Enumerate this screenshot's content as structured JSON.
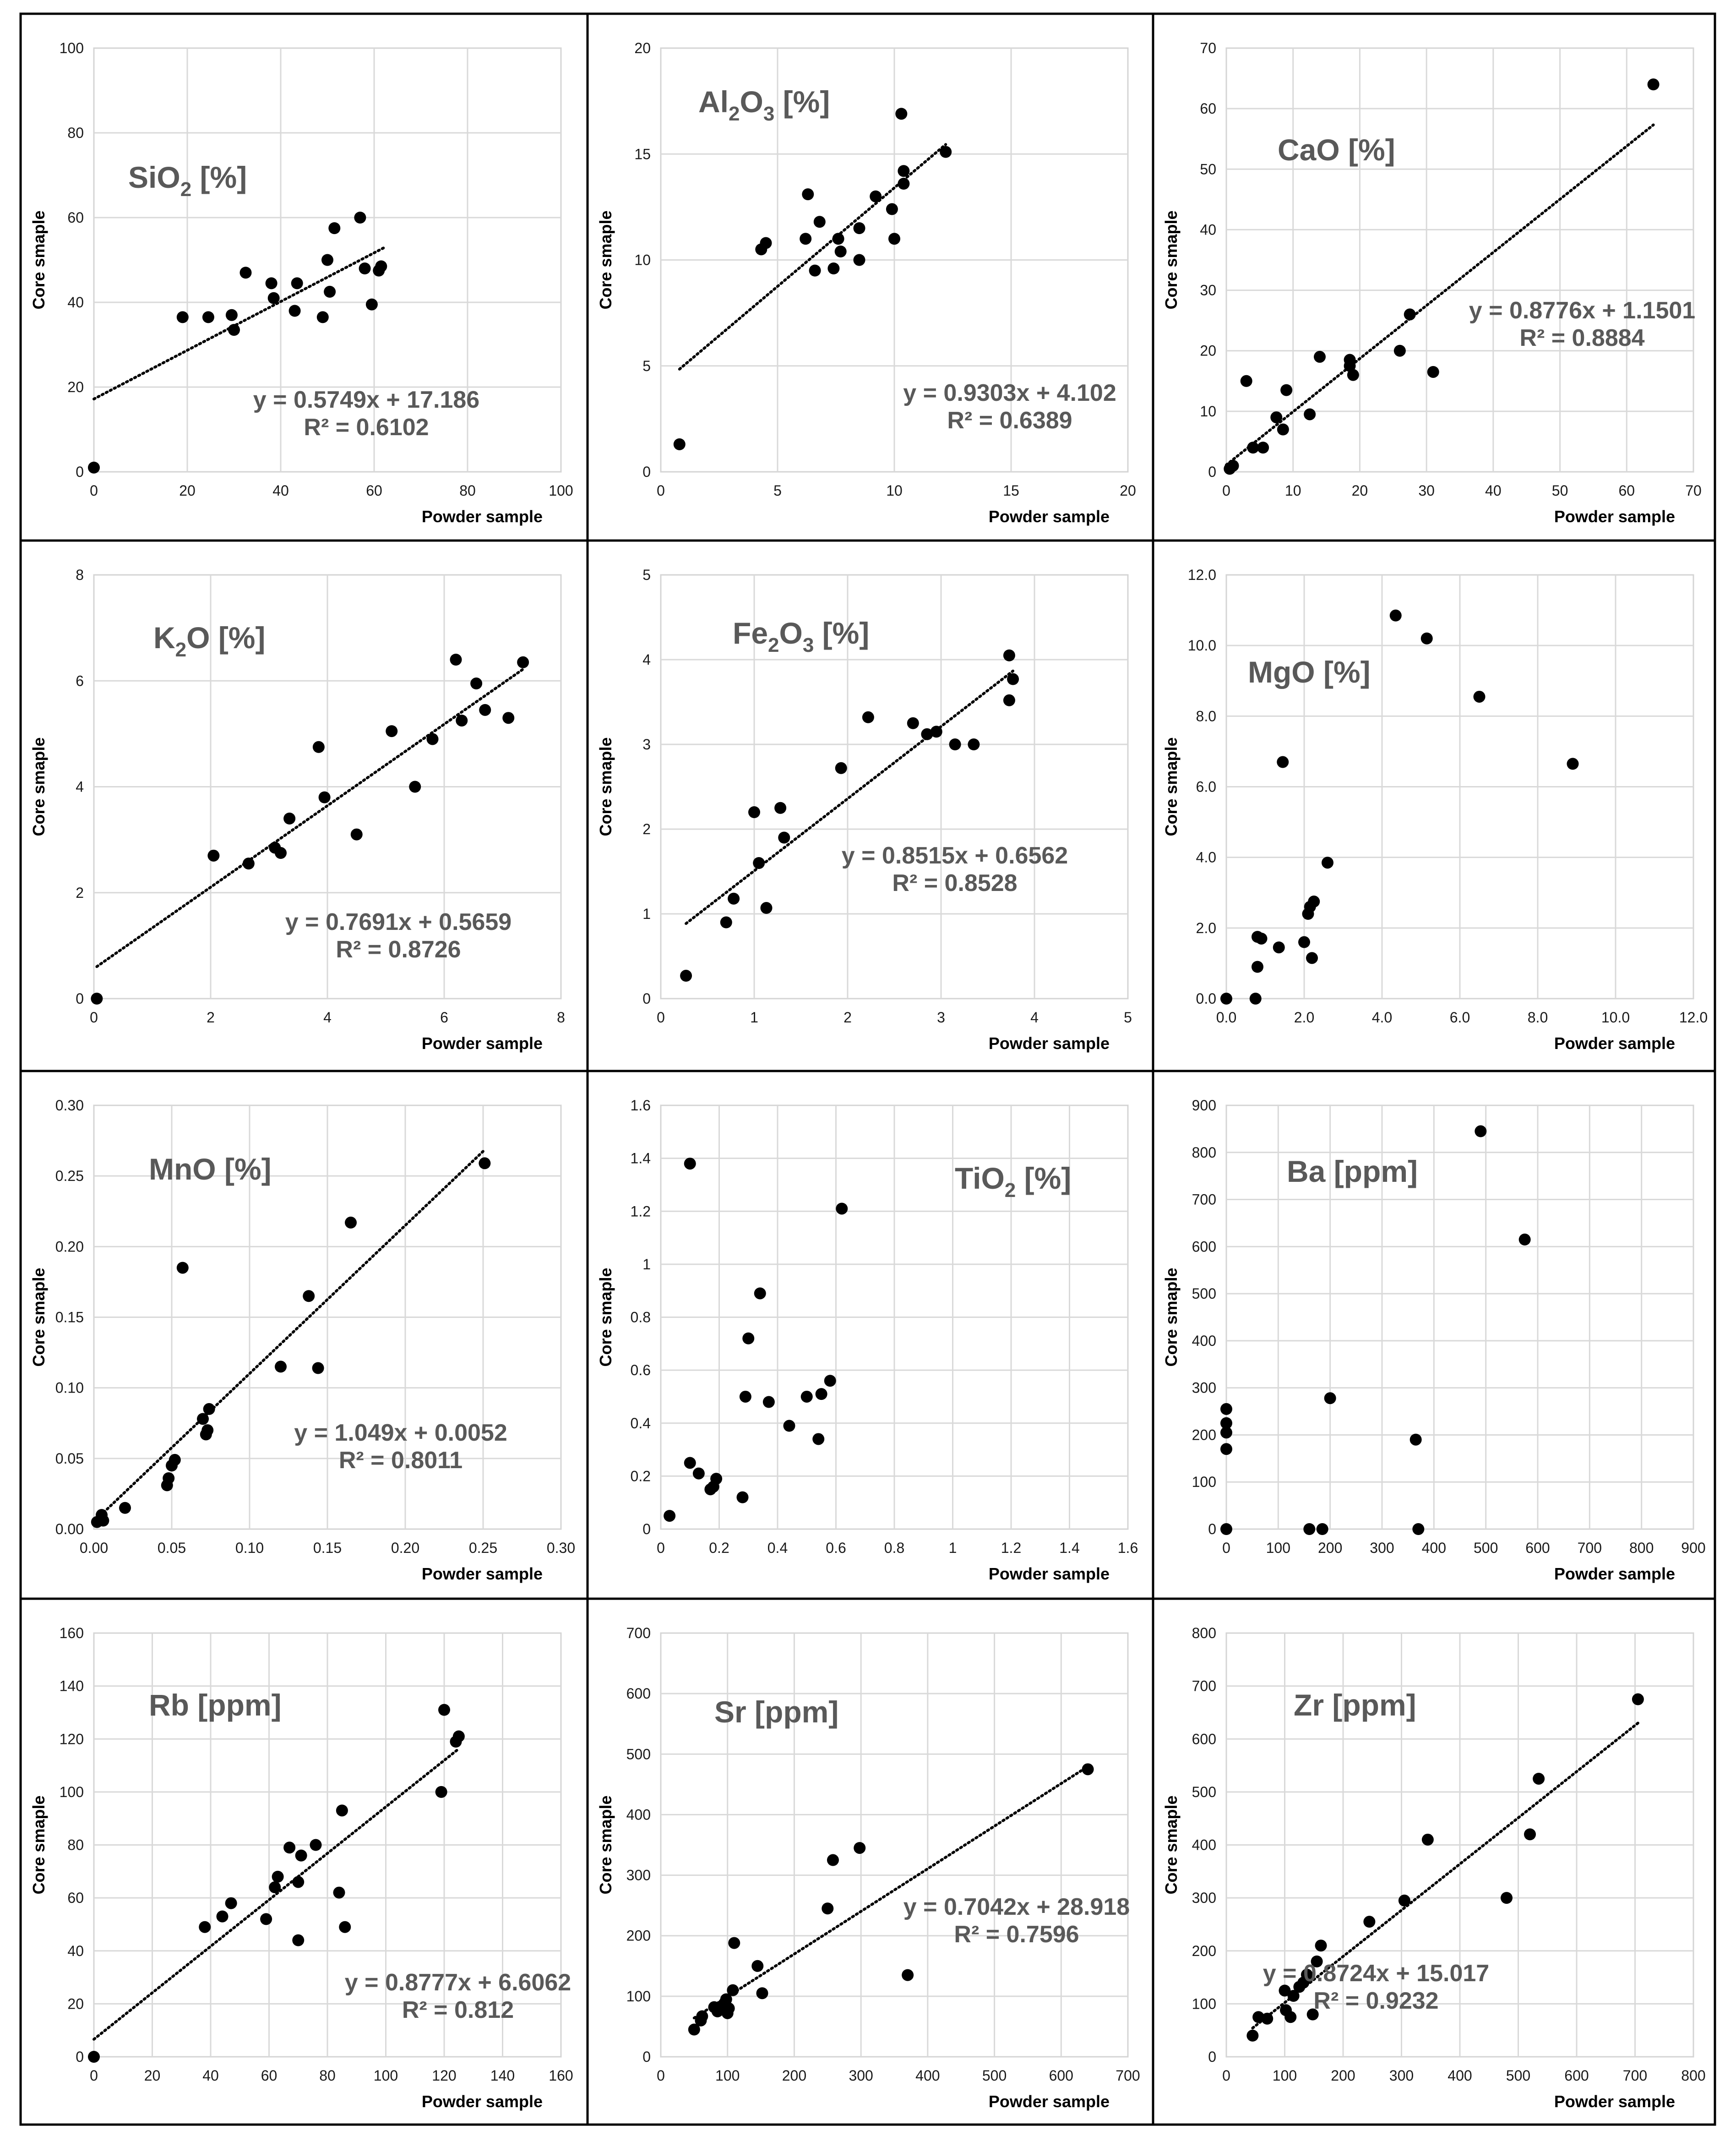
{
  "figure": {
    "y_axis_label": "Core smaple",
    "x_axis_label": "Powder sample"
  },
  "chart_data": [
    {
      "type": "scatter",
      "title": "SiO2 [%]",
      "title_parts": [
        [
          "SiO",
          false
        ],
        [
          "2",
          true
        ],
        [
          " [%]",
          false
        ]
      ],
      "xlabel": "Powder sample",
      "ylabel": "Core smaple",
      "xlim": [
        0,
        100
      ],
      "ylim": [
        0,
        100
      ],
      "xticks": [
        0,
        20,
        40,
        60,
        80,
        100
      ],
      "yticks": [
        0,
        20,
        40,
        60,
        80,
        100
      ],
      "tick_labels_x": [
        "0",
        "20",
        "40",
        "60",
        "80",
        "100"
      ],
      "tick_labels_y": [
        "0",
        "20",
        "40",
        "60",
        "80",
        "100"
      ],
      "x": [
        0,
        19,
        24.5,
        29.5,
        30,
        32.5,
        38,
        38.5,
        43,
        43.5,
        49,
        50,
        50.5,
        51.5,
        57,
        58,
        59.5,
        61,
        61.5
      ],
      "y": [
        1,
        36.5,
        36.5,
        37,
        33.5,
        47,
        44.5,
        41,
        38,
        44.5,
        36.5,
        50,
        42.5,
        57.5,
        60,
        48,
        39.5,
        47.5,
        48.5
      ],
      "trendline": {
        "slope": 0.5749,
        "intercept": 17.186,
        "x_range": [
          0,
          62
        ]
      },
      "equation": "y = 0.5749x + 17.186",
      "r_squared": "R² = 0.6102"
    },
    {
      "type": "scatter",
      "title": "Al2O3 [%]",
      "title_parts": [
        [
          "Al",
          false
        ],
        [
          "2",
          true
        ],
        [
          "O",
          false
        ],
        [
          "3",
          true
        ],
        [
          " [%]",
          false
        ]
      ],
      "xlabel": "Powder sample",
      "ylabel": "Core smaple",
      "xlim": [
        0,
        20
      ],
      "ylim": [
        0,
        20
      ],
      "xticks": [
        0,
        5,
        10,
        15,
        20
      ],
      "yticks": [
        0,
        5,
        10,
        15,
        20
      ],
      "tick_labels_x": [
        "0",
        "5",
        "10",
        "15",
        "20"
      ],
      "tick_labels_y": [
        "0",
        "5",
        "10",
        "15",
        "20"
      ],
      "x": [
        0.8,
        4.3,
        4.5,
        6.2,
        6.3,
        6.6,
        6.8,
        7.4,
        7.6,
        7.7,
        8.5,
        8.5,
        9.2,
        9.9,
        10.0,
        10.3,
        10.4,
        10.4,
        12.2
      ],
      "y": [
        1.3,
        10.5,
        10.8,
        11.0,
        13.1,
        9.5,
        11.8,
        9.6,
        11.0,
        10.4,
        10.0,
        11.5,
        13.0,
        12.4,
        11.0,
        16.9,
        13.6,
        14.2,
        15.1
      ],
      "trendline": {
        "slope": 0.9303,
        "intercept": 4.102,
        "x_range": [
          0.8,
          12.2
        ]
      },
      "equation": "y = 0.9303x + 4.102",
      "r_squared": "R² = 0.6389"
    },
    {
      "type": "scatter",
      "title": "CaO [%]",
      "title_parts": [
        [
          "CaO [%]",
          false
        ]
      ],
      "xlabel": "Powder sample",
      "ylabel": "Core smaple",
      "xlim": [
        0,
        70
      ],
      "ylim": [
        0,
        70
      ],
      "xticks": [
        0,
        10,
        20,
        30,
        40,
        50,
        60,
        70
      ],
      "yticks": [
        0,
        10,
        20,
        30,
        40,
        50,
        60,
        70
      ],
      "tick_labels_x": [
        "0",
        "10",
        "20",
        "30",
        "40",
        "50",
        "60",
        "70"
      ],
      "tick_labels_y": [
        "0",
        "10",
        "20",
        "30",
        "40",
        "50",
        "60",
        "70"
      ],
      "x": [
        0.5,
        1,
        3,
        4,
        5.5,
        7.5,
        8.5,
        9,
        12.5,
        14,
        18.5,
        18.5,
        19,
        26,
        27.5,
        31,
        64
      ],
      "y": [
        0.5,
        1,
        15,
        4,
        4,
        9,
        7,
        13.5,
        9.5,
        19,
        18.5,
        17.5,
        16,
        20,
        26,
        16.5,
        64
      ],
      "trendline": {
        "slope": 0.8776,
        "intercept": 1.1501,
        "x_range": [
          0,
          64
        ]
      },
      "equation": "y = 0.8776x + 1.1501",
      "r_squared": "R² = 0.8884"
    },
    {
      "type": "scatter",
      "title": "K2O [%]",
      "title_parts": [
        [
          "K",
          false
        ],
        [
          "2",
          true
        ],
        [
          "O [%]",
          false
        ]
      ],
      "xlabel": "Powder sample",
      "ylabel": "Core smaple",
      "xlim": [
        0,
        8
      ],
      "ylim": [
        0,
        8
      ],
      "xticks": [
        0,
        2,
        4,
        6,
        8
      ],
      "yticks": [
        0,
        2,
        4,
        6,
        8
      ],
      "tick_labels_x": [
        "0",
        "2",
        "4",
        "6",
        "8"
      ],
      "tick_labels_y": [
        "0",
        "2",
        "4",
        "6",
        "8"
      ],
      "x": [
        0.05,
        2.05,
        2.65,
        3.1,
        3.2,
        3.35,
        3.85,
        3.95,
        4.5,
        5.1,
        5.5,
        5.8,
        6.2,
        6.3,
        6.55,
        6.7,
        7.1,
        7.35
      ],
      "y": [
        0,
        2.7,
        2.55,
        2.85,
        2.75,
        3.4,
        4.75,
        3.8,
        3.1,
        5.05,
        4,
        4.9,
        6.4,
        5.25,
        5.95,
        5.45,
        5.3,
        6.35
      ],
      "trendline": {
        "slope": 0.7691,
        "intercept": 0.5659,
        "x_range": [
          0.05,
          7.35
        ]
      },
      "equation": "y = 0.7691x + 0.5659",
      "r_squared": "R² = 0.8726"
    },
    {
      "type": "scatter",
      "title": "Fe2O3 [%]",
      "title_parts": [
        [
          "Fe",
          false
        ],
        [
          "2",
          true
        ],
        [
          "O",
          false
        ],
        [
          "3",
          true
        ],
        [
          " [%]",
          false
        ]
      ],
      "xlabel": "Powder sample",
      "ylabel": "Core smaple",
      "xlim": [
        0,
        5
      ],
      "ylim": [
        0,
        5
      ],
      "xticks": [
        0,
        1,
        2,
        3,
        4,
        5
      ],
      "yticks": [
        0,
        1,
        2,
        3,
        4,
        5
      ],
      "tick_labels_x": [
        "0",
        "1",
        "2",
        "3",
        "4",
        "5"
      ],
      "tick_labels_y": [
        "0",
        "1",
        "2",
        "3",
        "4",
        "5"
      ],
      "x": [
        0.27,
        0.7,
        0.78,
        1.0,
        1.05,
        1.13,
        1.28,
        1.32,
        1.93,
        2.22,
        2.7,
        2.85,
        2.95,
        3.15,
        3.35,
        3.73,
        3.73,
        3.77
      ],
      "y": [
        0.27,
        0.9,
        1.18,
        2.2,
        1.6,
        1.07,
        2.25,
        1.9,
        2.72,
        3.32,
        3.25,
        3.12,
        3.15,
        3.0,
        3.0,
        4.05,
        3.52,
        3.77
      ],
      "trendline": {
        "slope": 0.8515,
        "intercept": 0.6562,
        "x_range": [
          0.27,
          3.77
        ]
      },
      "equation": "y = 0.8515x + 0.6562",
      "r_squared": "R² = 0.8528"
    },
    {
      "type": "scatter",
      "title": "MgO [%]",
      "title_parts": [
        [
          "MgO [%]",
          false
        ]
      ],
      "xlabel": "Powder sample",
      "ylabel": "Core smaple",
      "xlim": [
        0,
        12
      ],
      "ylim": [
        0,
        12
      ],
      "xticks": [
        0,
        2,
        4,
        6,
        8,
        10,
        12
      ],
      "yticks": [
        0,
        2,
        4,
        6,
        8,
        10,
        12
      ],
      "tick_labels_x": [
        "0.0",
        "2.0",
        "4.0",
        "6.0",
        "8.0",
        "10.0",
        "12.0"
      ],
      "tick_labels_y": [
        "0.0",
        "2.0",
        "4.0",
        "6.0",
        "8.0",
        "10.0",
        "12.0"
      ],
      "x": [
        0.0,
        0.75,
        0.8,
        0.8,
        0.9,
        1.35,
        1.45,
        2.0,
        2.1,
        2.15,
        2.2,
        2.25,
        2.6,
        4.35,
        5.15,
        6.5,
        8.9
      ],
      "y": [
        0.0,
        0.0,
        0.9,
        1.75,
        1.7,
        1.45,
        6.7,
        1.6,
        2.4,
        2.6,
        1.15,
        2.75,
        3.85,
        10.85,
        10.2,
        8.55,
        6.65
      ],
      "equation": "",
      "r_squared": ""
    },
    {
      "type": "scatter",
      "title": "MnO [%]",
      "title_parts": [
        [
          "MnO [%]",
          false
        ]
      ],
      "xlabel": "Powder sample",
      "ylabel": "Core smaple",
      "xlim": [
        0,
        0.3
      ],
      "ylim": [
        0,
        0.3
      ],
      "xticks": [
        0,
        0.05,
        0.1,
        0.15,
        0.2,
        0.25,
        0.3
      ],
      "yticks": [
        0,
        0.05,
        0.1,
        0.15,
        0.2,
        0.25,
        0.3
      ],
      "tick_labels_x": [
        "0.00",
        "0.05",
        "0.10",
        "0.15",
        "0.20",
        "0.25",
        "0.30"
      ],
      "tick_labels_y": [
        "0.00",
        "0.05",
        "0.10",
        "0.15",
        "0.20",
        "0.25",
        "0.30"
      ],
      "x": [
        0.002,
        0.005,
        0.006,
        0.02,
        0.047,
        0.048,
        0.05,
        0.052,
        0.057,
        0.07,
        0.072,
        0.073,
        0.074,
        0.12,
        0.138,
        0.144,
        0.165,
        0.251
      ],
      "y": [
        0.005,
        0.01,
        0.006,
        0.015,
        0.031,
        0.036,
        0.045,
        0.049,
        0.185,
        0.078,
        0.067,
        0.07,
        0.085,
        0.115,
        0.165,
        0.114,
        0.217,
        0.259
      ],
      "trendline": {
        "slope": 1.049,
        "intercept": 0.0052,
        "x_range": [
          0,
          0.251
        ]
      },
      "equation": "y = 1.049x + 0.0052",
      "r_squared": "R² = 0.8011"
    },
    {
      "type": "scatter",
      "title": "TiO2 [%]",
      "title_parts": [
        [
          "TiO",
          false
        ],
        [
          "2",
          true
        ],
        [
          " [%]",
          false
        ]
      ],
      "xlabel": "Powder sample",
      "ylabel": "Core smaple",
      "xlim": [
        0,
        1.6
      ],
      "ylim": [
        0,
        1.6
      ],
      "xticks": [
        0,
        0.2,
        0.4,
        0.6,
        0.8,
        1.0,
        1.2,
        1.4,
        1.6
      ],
      "yticks": [
        0,
        0.2,
        0.4,
        0.6,
        0.8,
        1.0,
        1.2,
        1.4,
        1.6
      ],
      "tick_labels_x": [
        "0",
        "0.2",
        "0.4",
        "0.6",
        "0.8",
        "1",
        "1.2",
        "1.4",
        "1.6"
      ],
      "tick_labels_y": [
        "0",
        "0.2",
        "0.4",
        "0.6",
        "0.8",
        "1",
        "1.2",
        "1.4",
        "1.6"
      ],
      "x": [
        0.03,
        0.1,
        0.1,
        0.13,
        0.17,
        0.18,
        0.19,
        0.28,
        0.29,
        0.3,
        0.34,
        0.37,
        0.44,
        0.5,
        0.54,
        0.55,
        0.58,
        0.62
      ],
      "y": [
        0.05,
        1.38,
        0.25,
        0.21,
        0.15,
        0.16,
        0.19,
        0.12,
        0.5,
        0.72,
        0.89,
        0.48,
        0.39,
        0.5,
        0.34,
        0.51,
        0.56,
        1.21
      ],
      "equation": "",
      "r_squared": ""
    },
    {
      "type": "scatter",
      "title": "Ba [ppm]",
      "title_parts": [
        [
          "Ba [ppm]",
          false
        ]
      ],
      "xlabel": "Powder sample",
      "ylabel": "Core smaple",
      "xlim": [
        0,
        900
      ],
      "ylim": [
        0,
        900
      ],
      "xticks": [
        0,
        100,
        200,
        300,
        400,
        500,
        600,
        700,
        800,
        900
      ],
      "yticks": [
        0,
        100,
        200,
        300,
        400,
        500,
        600,
        700,
        800,
        900
      ],
      "tick_labels_x": [
        "0",
        "100",
        "200",
        "300",
        "400",
        "500",
        "600",
        "700",
        "800",
        "900"
      ],
      "tick_labels_y": [
        "0",
        "100",
        "200",
        "300",
        "400",
        "500",
        "600",
        "700",
        "800",
        "900"
      ],
      "x": [
        0,
        0,
        0,
        0,
        0,
        160,
        185,
        200,
        365,
        370,
        490,
        575
      ],
      "y": [
        0,
        170,
        205,
        225,
        255,
        0,
        0,
        278,
        190,
        0,
        845,
        615
      ],
      "equation": "",
      "r_squared": ""
    },
    {
      "type": "scatter",
      "title": "Rb [ppm]",
      "title_parts": [
        [
          "Rb [ppm]",
          false
        ]
      ],
      "xlabel": "Powder sample",
      "ylabel": "Core smaple",
      "xlim": [
        0,
        160
      ],
      "ylim": [
        0,
        160
      ],
      "xticks": [
        0,
        20,
        40,
        60,
        80,
        100,
        120,
        140,
        160
      ],
      "yticks": [
        0,
        20,
        40,
        60,
        80,
        100,
        120,
        140,
        160
      ],
      "tick_labels_x": [
        "0",
        "20",
        "40",
        "60",
        "80",
        "100",
        "120",
        "140",
        "160"
      ],
      "tick_labels_y": [
        "0",
        "20",
        "40",
        "60",
        "80",
        "100",
        "120",
        "140",
        "160"
      ],
      "x": [
        0,
        38,
        44,
        47,
        59,
        62,
        63,
        67,
        70,
        71,
        70,
        76,
        84,
        85,
        86,
        119,
        120,
        124,
        125
      ],
      "y": [
        0,
        49,
        53,
        58,
        52,
        64,
        68,
        79,
        66,
        76,
        44,
        80,
        62,
        93,
        49,
        100,
        131,
        119,
        121
      ],
      "trendline": {
        "slope": 0.8777,
        "intercept": 6.6062,
        "x_range": [
          0,
          125
        ]
      },
      "equation": "y = 0.8777x + 6.6062",
      "r_squared": "R² = 0.812"
    },
    {
      "type": "scatter",
      "title": "Sr [ppm]",
      "title_parts": [
        [
          "Sr [ppm]",
          false
        ]
      ],
      "xlabel": "Powder sample",
      "ylabel": "Core smaple",
      "xlim": [
        0,
        700
      ],
      "ylim": [
        0,
        700
      ],
      "xticks": [
        0,
        100,
        200,
        300,
        400,
        500,
        600,
        700
      ],
      "yticks": [
        0,
        100,
        200,
        300,
        400,
        500,
        600,
        700
      ],
      "tick_labels_x": [
        "0",
        "100",
        "200",
        "300",
        "400",
        "500",
        "600",
        "700"
      ],
      "tick_labels_y": [
        "0",
        "100",
        "200",
        "300",
        "400",
        "500",
        "600",
        "700"
      ],
      "x": [
        50,
        60,
        62,
        80,
        85,
        95,
        98,
        100,
        102,
        108,
        110,
        145,
        152,
        250,
        258,
        298,
        370,
        640
      ],
      "y": [
        45,
        60,
        67,
        82,
        75,
        88,
        95,
        72,
        80,
        110,
        188,
        150,
        105,
        245,
        325,
        345,
        135,
        475
      ],
      "trendline": {
        "slope": 0.7042,
        "intercept": 28.918,
        "x_range": [
          50,
          640
        ]
      },
      "equation": "y = 0.7042x + 28.918",
      "r_squared": "R² = 0.7596"
    },
    {
      "type": "scatter",
      "title": "Zr [ppm]",
      "title_parts": [
        [
          "Zr [ppm]",
          false
        ]
      ],
      "xlabel": "Powder sample",
      "ylabel": "Core smaple",
      "xlim": [
        0,
        800
      ],
      "ylim": [
        0,
        800
      ],
      "xticks": [
        0,
        100,
        200,
        300,
        400,
        500,
        600,
        700,
        800
      ],
      "yticks": [
        0,
        100,
        200,
        300,
        400,
        500,
        600,
        700,
        800
      ],
      "tick_labels_x": [
        "0",
        "100",
        "200",
        "300",
        "400",
        "500",
        "600",
        "700",
        "800"
      ],
      "tick_labels_y": [
        "0",
        "100",
        "200",
        "300",
        "400",
        "500",
        "600",
        "700",
        "800"
      ],
      "x": [
        45,
        55,
        70,
        100,
        102,
        110,
        115,
        125,
        132,
        138,
        148,
        155,
        162,
        245,
        305,
        345,
        480,
        520,
        535,
        705
      ],
      "y": [
        40,
        75,
        72,
        125,
        88,
        75,
        115,
        132,
        140,
        155,
        80,
        180,
        210,
        255,
        295,
        410,
        300,
        420,
        525,
        675
      ],
      "trendline": {
        "slope": 0.8724,
        "intercept": 15.017,
        "x_range": [
          45,
          705
        ]
      },
      "equation": "y = 0.8724x + 15.017",
      "r_squared": "R² = 0.9232"
    }
  ]
}
